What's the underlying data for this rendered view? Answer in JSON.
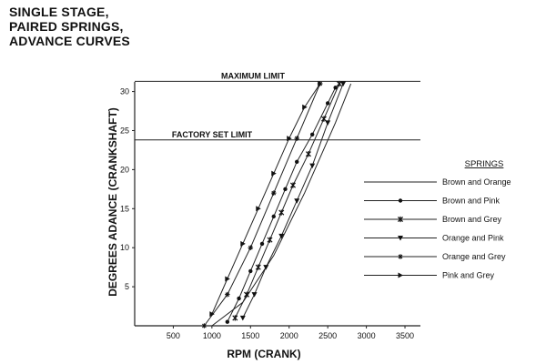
{
  "title_lines": [
    "SINGLE STAGE,",
    "PAIRED SPRINGS,",
    "ADVANCE CURVES"
  ],
  "chart_data": {
    "type": "line",
    "title": "SINGLE STAGE, PAIRED SPRINGS, ADVANCE CURVES",
    "xlabel": "RPM (CRANK)",
    "ylabel": "DEGREES ADANCE (CRANKSHAFT)",
    "xlim": [
      0,
      3700
    ],
    "ylim": [
      0,
      31
    ],
    "xticks": [
      500,
      1000,
      1500,
      2000,
      2500,
      3000,
      3500
    ],
    "yticks": [
      5,
      10,
      15,
      20,
      25,
      30
    ],
    "reference_lines": [
      {
        "label": "MAXIMUM LIMIT",
        "y": 31.3
      },
      {
        "label": "FACTORY SET LIMIT",
        "y": 23.8
      }
    ],
    "legend_title": "SPRINGS",
    "legend_position": "right",
    "series": [
      {
        "name": "Brown and Orange",
        "marker": "none",
        "x": [
          1000,
          1400,
          1800,
          2200,
          2600,
          2800
        ],
        "y": [
          0,
          3,
          9,
          17,
          26,
          31
        ]
      },
      {
        "name": "Brown and Pink",
        "marker": "dot",
        "x": [
          1200,
          1350,
          1500,
          1650,
          1800,
          1950,
          2100,
          2300,
          2500,
          2600
        ],
        "y": [
          0.5,
          3.5,
          7,
          10.5,
          14,
          17.5,
          21,
          24.5,
          28.5,
          30.5
        ]
      },
      {
        "name": "Brown and Grey",
        "marker": "star",
        "x": [
          1300,
          1450,
          1600,
          1750,
          1900,
          2050,
          2250,
          2450,
          2650
        ],
        "y": [
          1,
          4,
          7.5,
          11,
          14.5,
          18,
          22,
          26.5,
          31
        ]
      },
      {
        "name": "Orange and Pink",
        "marker": "triangle-down",
        "x": [
          1400,
          1550,
          1700,
          1900,
          2100,
          2300,
          2500,
          2700
        ],
        "y": [
          1,
          4,
          7.5,
          11.5,
          16,
          20.5,
          26,
          31
        ]
      },
      {
        "name": "Orange and Grey",
        "marker": "asterisk",
        "x": [
          900,
          1200,
          1500,
          1800,
          2100,
          2400
        ],
        "y": [
          0,
          4,
          10,
          17,
          24,
          31
        ]
      },
      {
        "name": "Pink and Grey",
        "marker": "triangle-right",
        "x": [
          1000,
          1200,
          1400,
          1600,
          1800,
          2000,
          2200,
          2400
        ],
        "y": [
          1.5,
          6,
          10.5,
          15,
          19.5,
          24,
          28,
          31
        ]
      }
    ]
  }
}
